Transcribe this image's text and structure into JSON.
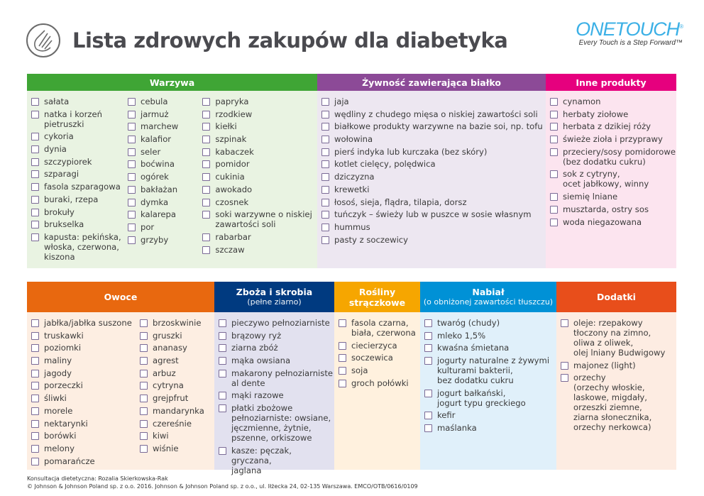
{
  "title": "Lista zdrowych zakupów dla diabetyka",
  "logo": {
    "brand": "OneTouch®",
    "tagline": "Every Touch is a Step Forward™"
  },
  "sections": [
    {
      "id": "warzywa",
      "title": "Warzywa",
      "sub": "",
      "color": "#3fa535",
      "bg": "#e9f3e2",
      "columns": [
        [
          "sałata",
          "natka i korzeń\npietruszki",
          "cykoria",
          "dynia",
          "szczypiorek",
          "szparagi",
          "fasola szparagowa",
          "buraki, rzepa",
          "brokuły",
          "brukselka",
          "kapusta: pekińska,\nwłoska, czerwona,\nkiszona"
        ],
        [
          "cebula",
          "jarmuż",
          "marchew",
          "kalafior",
          "seler",
          "boćwina",
          "ogórek",
          "bakłażan",
          "dymka",
          "kalarepa",
          "por",
          "grzyby"
        ],
        [
          "papryka",
          "rzodkiew",
          "kiełki",
          "szpinak",
          "kabaczek",
          "pomidor",
          "cukinia",
          "awokado",
          "czosnek",
          "soki warzywne o niskiej\nzawartości soli",
          "rabarbar",
          "szczaw"
        ]
      ]
    },
    {
      "id": "bialko",
      "title": "Żywność zawierająca białko",
      "sub": "",
      "color": "#8c4a97",
      "bg": "#ede7f1",
      "columns": [
        [
          "jaja",
          "wędliny z chudego mięsa o niskiej zawartości soli",
          "białkowe produkty warzywne na bazie soi, np. tofu",
          "wołowina",
          "pierś indyka lub kurczaka (bez skóry)",
          "kotlet cielęcy, polędwica",
          "dziczyzna",
          "krewetki",
          "łosoś, sieja, flądra, tilapia, dorsz",
          "tuńczyk – świeży lub w puszce w sosie własnym",
          "hummus",
          "pasty z soczewicy"
        ]
      ]
    },
    {
      "id": "inne",
      "title": "Inne produkty",
      "sub": "",
      "color": "#e6007e",
      "bg": "#fce4ef",
      "columns": [
        [
          "cynamon",
          "herbaty ziołowe",
          "herbata z dzikiej róży",
          "świeże zioła i przyprawy",
          "przeciery/sosy pomidorowe\n(bez dodatku cukru)",
          "sok z cytryny,\nocet jabłkowy, winny",
          "siemię lniane",
          "musztarda, ostry sos",
          "woda niegazowana"
        ]
      ]
    },
    {
      "id": "owoce",
      "title": "Owoce",
      "sub": "",
      "color": "#e8680f",
      "bg": "#fdeee2",
      "columns": [
        [
          "jabłka/jabłka suszone",
          "truskawki",
          "poziomki",
          "maliny",
          "jagody",
          "porzeczki",
          "śliwki",
          "morele",
          "nektarynki",
          "borówki",
          "melony",
          "pomarańcze"
        ],
        [
          "brzoskwinie",
          "gruszki",
          "ananasy",
          "agrest",
          "arbuz",
          "cytryna",
          "grejpfrut",
          "mandarynka",
          "czereśnie",
          "kiwi",
          "wiśnie"
        ]
      ]
    },
    {
      "id": "zboza",
      "title": "Zboża i skrobia",
      "sub": "(pełne ziarno)",
      "color": "#003a80",
      "bg": "#e2e1ef",
      "columns": [
        [
          "pieczywo pełnoziarniste",
          "brązowy ryż",
          "ziarna zbóż",
          "mąka owsiana",
          "makarony pełnoziarniste\nal dente",
          "mąki razowe",
          "płatki zbożowe\npełnoziarniste: owsiane,\njęczmienne, żytnie,\npszenne, orkiszowe",
          "kasze: pęczak, gryczana,\njaglana"
        ]
      ]
    },
    {
      "id": "straczkowe",
      "title": "Rośliny\nstrączkowe",
      "sub": "",
      "color": "#f6a600",
      "bg": "#fff1de",
      "columns": [
        [
          "fasola czarna,\nbiała, czerwona",
          "ciecierzyca",
          "soczewica",
          "soja",
          "groch połówki"
        ]
      ]
    },
    {
      "id": "nabial",
      "title": "Nabiał",
      "sub": "(o obniżonej zawartości tłuszczu)",
      "color": "#0091d6",
      "bg": "#e0f0fa",
      "columns": [
        [
          "twaróg (chudy)",
          "mleko 1,5%",
          "kwaśna śmietana",
          "jogurty naturalne z żywymi\nkulturami bakterii,\nbez dodatku cukru",
          "jogurt bałkański,\njogurt typu greckiego",
          "kefir",
          "maślanka"
        ]
      ]
    },
    {
      "id": "dodatki",
      "title": "Dodatki",
      "sub": "",
      "color": "#e84e1b",
      "bg": "#fdece2",
      "columns": [
        [
          "oleje: rzepakowy\ntłoczony na zimno,\noliwa z oliwek,\nolej lniany Budwigowy",
          "majonez (light)",
          "orzechy\n(orzechy włoskie,\nlaskowe, migdały,\norzeszki ziemne,\nziarna słonecznika,\norzechy nerkowca)"
        ]
      ]
    }
  ],
  "footer": {
    "line1": "Konsultacja dietetyczna: Rozalia Skierkowska-Rak",
    "line2": "© Johnson & Johnson Poland sp. z o.o. 2016. Johnson & Johnson Poland sp. z o.o., ul. Iłżecka 24, 02-135 Warszawa. EMCO/OTB/0616/0109"
  }
}
